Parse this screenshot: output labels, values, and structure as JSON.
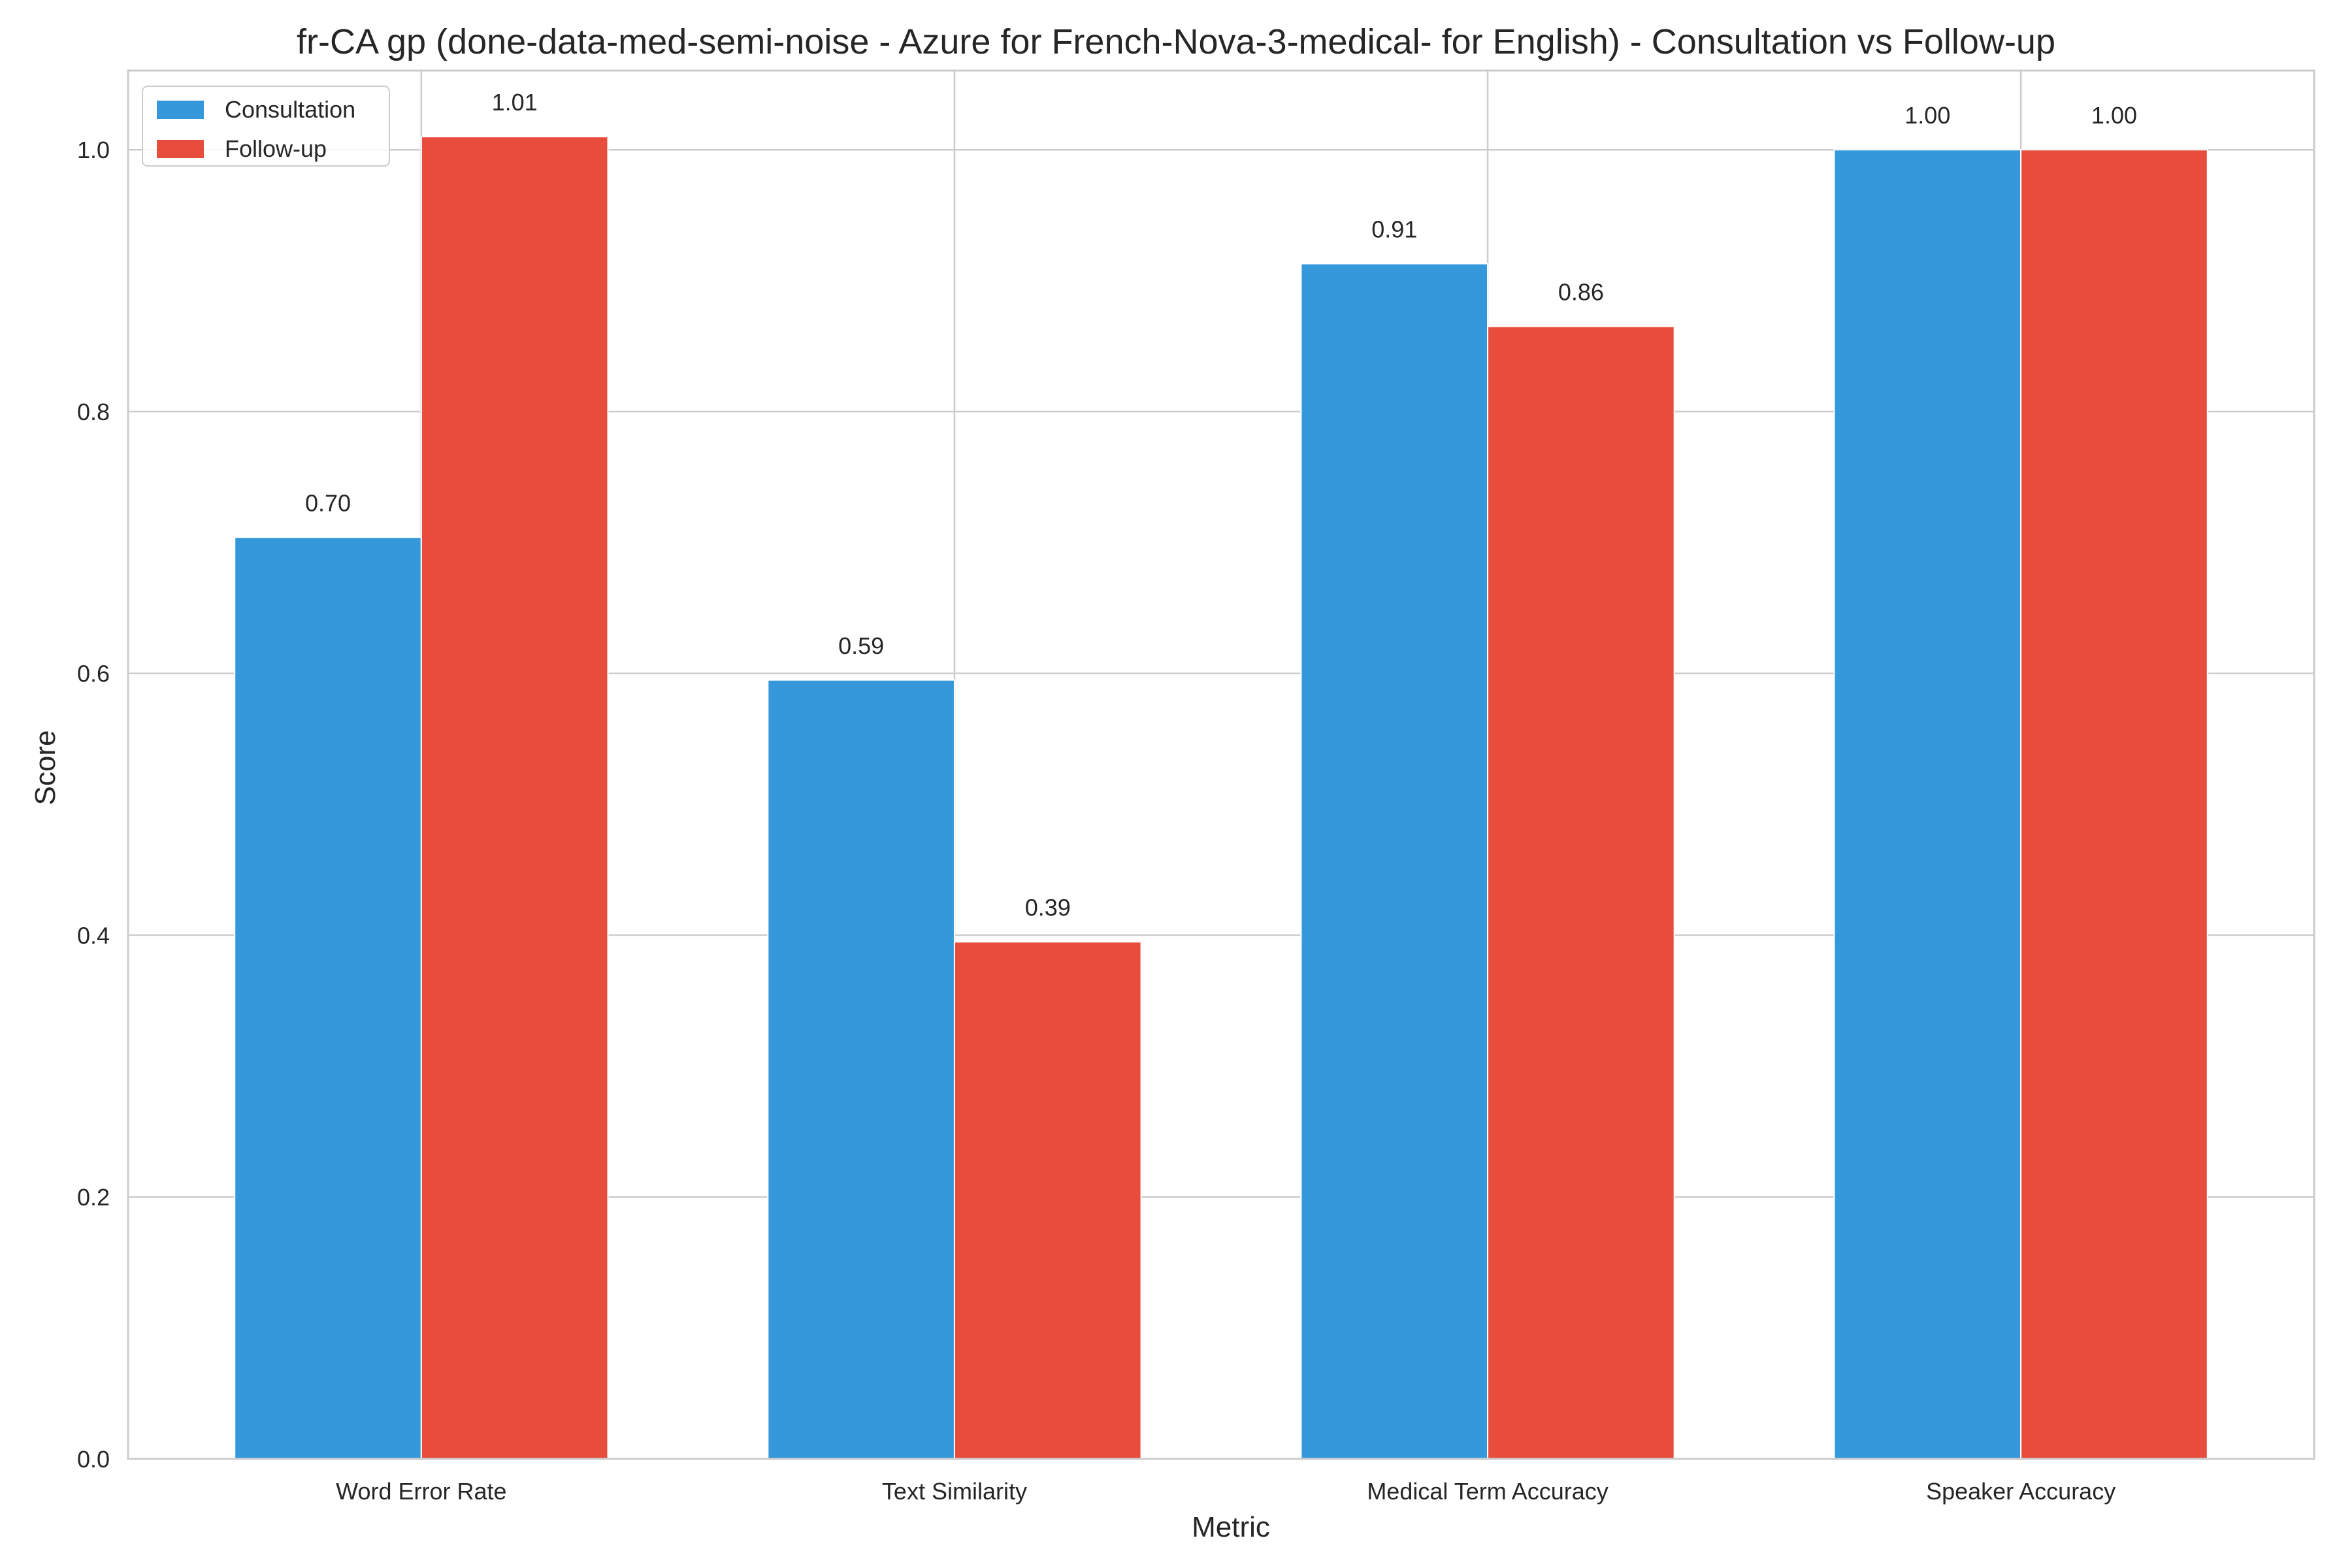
{
  "chart_data": {
    "type": "bar",
    "title": "fr-CA gp (done-data-med-semi-noise - Azure for French-Nova-3-medical- for English) - Consultation vs Follow-up",
    "xlabel": "Metric",
    "ylabel": "Score",
    "categories": [
      "Word Error Rate",
      "Text Similarity",
      "Medical Term Accuracy",
      "Speaker Accuracy"
    ],
    "series": [
      {
        "name": "Consultation",
        "color": "#3498db",
        "values": [
          0.704,
          0.595,
          0.913,
          1.0
        ],
        "labels": [
          "0.70",
          "0.59",
          "0.91",
          "1.00"
        ]
      },
      {
        "name": "Follow-up",
        "color": "#e74c3c",
        "values": [
          1.01,
          0.395,
          0.865,
          1.0
        ],
        "labels": [
          "1.01",
          "0.39",
          "0.86",
          "1.00"
        ]
      }
    ],
    "ylim": [
      0,
      1.0605
    ],
    "yticks": [
      0.0,
      0.2,
      0.4,
      0.6,
      0.8,
      1.0
    ],
    "ytick_labels": [
      "0.0",
      "0.2",
      "0.4",
      "0.6",
      "0.8",
      "1.0"
    ],
    "grid": true,
    "legend_position": "top-left"
  }
}
